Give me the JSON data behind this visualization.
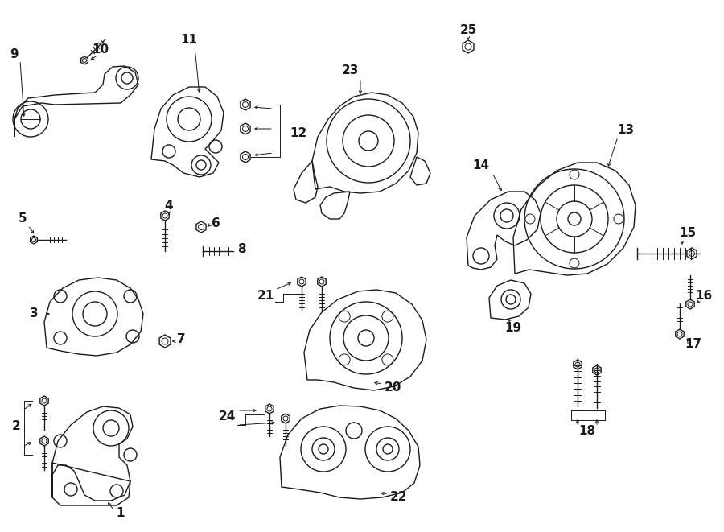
{
  "bg_color": "#ffffff",
  "line_color": "#1a1a1a",
  "fig_width": 9.0,
  "fig_height": 6.61,
  "dpi": 100,
  "xlim": [
    0,
    900
  ],
  "ylim": [
    0,
    661
  ]
}
